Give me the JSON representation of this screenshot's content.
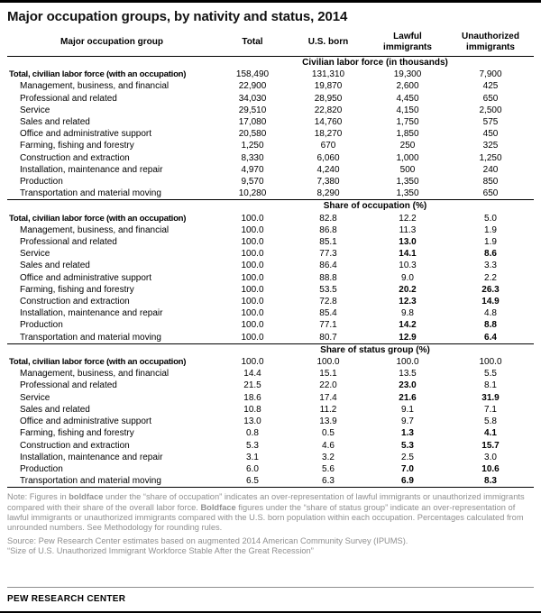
{
  "chart_data": {
    "type": "table",
    "title": "Major occupation groups, by nativity and status, 2014",
    "columns": [
      "Major occupation group",
      "Total",
      "U.S. born",
      "Lawful immigrants",
      "Unauthorized immigrants"
    ],
    "sections": [
      {
        "header": "Civilian labor force (in thousands)",
        "rows": [
          {
            "label": "Total, civilian labor force (with an occupation)",
            "total": true,
            "values": [
              "158,490",
              "131,310",
              "19,300",
              "7,900"
            ],
            "bold": []
          },
          {
            "label": "Management, business, and financial",
            "total": false,
            "values": [
              "22,900",
              "19,870",
              "2,600",
              "425"
            ],
            "bold": []
          },
          {
            "label": "Professional and related",
            "total": false,
            "values": [
              "34,030",
              "28,950",
              "4,450",
              "650"
            ],
            "bold": []
          },
          {
            "label": "Service",
            "total": false,
            "values": [
              "29,510",
              "22,820",
              "4,150",
              "2,500"
            ],
            "bold": []
          },
          {
            "label": "Sales and related",
            "total": false,
            "values": [
              "17,080",
              "14,760",
              "1,750",
              "575"
            ],
            "bold": []
          },
          {
            "label": "Office and administrative support",
            "total": false,
            "values": [
              "20,580",
              "18,270",
              "1,850",
              "450"
            ],
            "bold": []
          },
          {
            "label": "Farming, fishing and forestry",
            "total": false,
            "values": [
              "1,250",
              "670",
              "250",
              "325"
            ],
            "bold": []
          },
          {
            "label": "Construction and extraction",
            "total": false,
            "values": [
              "8,330",
              "6,060",
              "1,000",
              "1,250"
            ],
            "bold": []
          },
          {
            "label": "Installation, maintenance and repair",
            "total": false,
            "values": [
              "4,970",
              "4,240",
              "500",
              "240"
            ],
            "bold": []
          },
          {
            "label": "Production",
            "total": false,
            "values": [
              "9,570",
              "7,380",
              "1,350",
              "850"
            ],
            "bold": []
          },
          {
            "label": "Transportation and material moving",
            "total": false,
            "values": [
              "10,280",
              "8,290",
              "1,350",
              "650"
            ],
            "bold": []
          }
        ]
      },
      {
        "header": "Share of occupation (%)",
        "rows": [
          {
            "label": "Total, civilian labor force (with an occupation)",
            "total": true,
            "values": [
              "100.0",
              "82.8",
              "12.2",
              "5.0"
            ],
            "bold": []
          },
          {
            "label": "Management, business, and financial",
            "total": false,
            "values": [
              "100.0",
              "86.8",
              "11.3",
              "1.9"
            ],
            "bold": []
          },
          {
            "label": "Professional and related",
            "total": false,
            "values": [
              "100.0",
              "85.1",
              "13.0",
              "1.9"
            ],
            "bold": [
              2
            ]
          },
          {
            "label": "Service",
            "total": false,
            "values": [
              "100.0",
              "77.3",
              "14.1",
              "8.6"
            ],
            "bold": [
              2,
              3
            ]
          },
          {
            "label": "Sales and related",
            "total": false,
            "values": [
              "100.0",
              "86.4",
              "10.3",
              "3.3"
            ],
            "bold": []
          },
          {
            "label": "Office and administrative support",
            "total": false,
            "values": [
              "100.0",
              "88.8",
              "9.0",
              "2.2"
            ],
            "bold": []
          },
          {
            "label": "Farming, fishing and forestry",
            "total": false,
            "values": [
              "100.0",
              "53.5",
              "20.2",
              "26.3"
            ],
            "bold": [
              2,
              3
            ]
          },
          {
            "label": "Construction and extraction",
            "total": false,
            "values": [
              "100.0",
              "72.8",
              "12.3",
              "14.9"
            ],
            "bold": [
              2,
              3
            ]
          },
          {
            "label": "Installation, maintenance and repair",
            "total": false,
            "values": [
              "100.0",
              "85.4",
              "9.8",
              "4.8"
            ],
            "bold": []
          },
          {
            "label": "Production",
            "total": false,
            "values": [
              "100.0",
              "77.1",
              "14.2",
              "8.8"
            ],
            "bold": [
              2,
              3
            ]
          },
          {
            "label": "Transportation and material moving",
            "total": false,
            "values": [
              "100.0",
              "80.7",
              "12.9",
              "6.4"
            ],
            "bold": [
              2,
              3
            ]
          }
        ]
      },
      {
        "header": "Share of status group (%)",
        "rows": [
          {
            "label": "Total, civilian labor force (with an occupation)",
            "total": true,
            "values": [
              "100.0",
              "100.0",
              "100.0",
              "100.0"
            ],
            "bold": []
          },
          {
            "label": "Management, business, and financial",
            "total": false,
            "values": [
              "14.4",
              "15.1",
              "13.5",
              "5.5"
            ],
            "bold": []
          },
          {
            "label": "Professional and related",
            "total": false,
            "values": [
              "21.5",
              "22.0",
              "23.0",
              "8.1"
            ],
            "bold": [
              2
            ]
          },
          {
            "label": "Service",
            "total": false,
            "values": [
              "18.6",
              "17.4",
              "21.6",
              "31.9"
            ],
            "bold": [
              2,
              3
            ]
          },
          {
            "label": "Sales and related",
            "total": false,
            "values": [
              "10.8",
              "11.2",
              "9.1",
              "7.1"
            ],
            "bold": []
          },
          {
            "label": "Office and administrative support",
            "total": false,
            "values": [
              "13.0",
              "13.9",
              "9.7",
              "5.8"
            ],
            "bold": []
          },
          {
            "label": "Farming, fishing and forestry",
            "total": false,
            "values": [
              "0.8",
              "0.5",
              "1.3",
              "4.1"
            ],
            "bold": [
              2,
              3
            ]
          },
          {
            "label": "Construction and extraction",
            "total": false,
            "values": [
              "5.3",
              "4.6",
              "5.3",
              "15.7"
            ],
            "bold": [
              2,
              3
            ]
          },
          {
            "label": "Installation, maintenance and repair",
            "total": false,
            "values": [
              "3.1",
              "3.2",
              "2.5",
              "3.0"
            ],
            "bold": []
          },
          {
            "label": "Production",
            "total": false,
            "values": [
              "6.0",
              "5.6",
              "7.0",
              "10.6"
            ],
            "bold": [
              2,
              3
            ]
          },
          {
            "label": "Transportation and material moving",
            "total": false,
            "values": [
              "6.5",
              "6.3",
              "6.9",
              "8.3"
            ],
            "bold": [
              2,
              3
            ]
          }
        ]
      }
    ]
  },
  "notes": [
    {
      "text": "Note: Figures in ",
      "bold": false
    },
    {
      "text": "boldface",
      "bold": true
    },
    {
      "text": " under the “share of occupation” indicates an over-representation of lawful immigrants or unauthorized immigrants compared with their share of the overall labor force. ",
      "bold": false
    },
    {
      "text": "Boldface",
      "bold": true
    },
    {
      "text": " figures under the “share of status group” indicate an over-representation of lawful immigrants or unauthorized immigrants compared with the U.S. born population within each occupation. Percentages calculated from unrounded numbers. See Methodology for rounding rules.",
      "bold": false
    }
  ],
  "source": "Source: Pew Research Center estimates based on augmented 2014 American Community Survey (IPUMS).",
  "report_title": "“Size of U.S. Unauthorized Immigrant Workforce Stable After the Great Recession”",
  "footer": "PEW RESEARCH CENTER"
}
